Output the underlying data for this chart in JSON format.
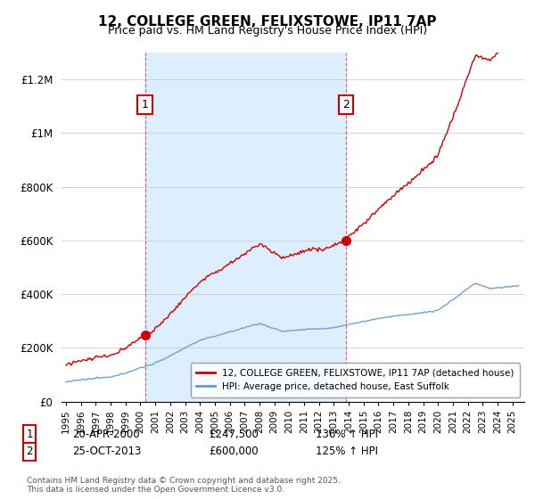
{
  "title": "12, COLLEGE GREEN, FELIXSTOWE, IP11 7AP",
  "subtitle": "Price paid vs. HM Land Registry's House Price Index (HPI)",
  "ylim": [
    0,
    1300000
  ],
  "yticks": [
    0,
    200000,
    400000,
    600000,
    800000,
    1000000,
    1200000
  ],
  "ytick_labels": [
    "£0",
    "£200K",
    "£400K",
    "£600K",
    "£800K",
    "£1M",
    "£1.2M"
  ],
  "legend_line1": "12, COLLEGE GREEN, FELIXSTOWE, IP11 7AP (detached house)",
  "legend_line2": "HPI: Average price, detached house, East Suffolk",
  "line1_color": "#cc0000",
  "line2_color": "#6699cc",
  "shade_color": "#ddeeff",
  "annotation1_label": "1",
  "annotation1_date": "20-APR-2000",
  "annotation1_price": "£247,500",
  "annotation1_hpi": "136% ↑ HPI",
  "annotation2_label": "2",
  "annotation2_date": "25-OCT-2013",
  "annotation2_price": "£600,000",
  "annotation2_hpi": "125% ↑ HPI",
  "footer": "Contains HM Land Registry data © Crown copyright and database right 2025.\nThis data is licensed under the Open Government Licence v3.0.",
  "background_color": "#ffffff",
  "grid_color": "#cccccc",
  "vline1_x": 2000.31,
  "vline2_x": 2013.82,
  "marker1_price": 247500,
  "marker2_price": 600000,
  "xmin": 1995,
  "xmax": 2025.5
}
